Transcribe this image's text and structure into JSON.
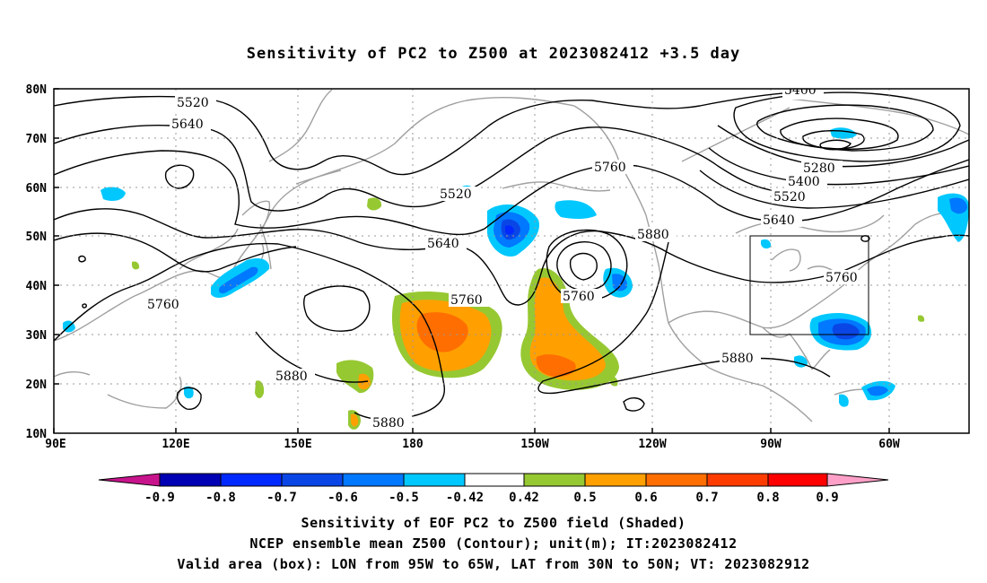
{
  "title": "Sensitivity of PC2 to Z500 at 2023082412 +3.5 day",
  "map": {
    "lat_labels": [
      "80N",
      "70N",
      "60N",
      "50N",
      "40N",
      "30N",
      "20N",
      "10N"
    ],
    "lon_labels": [
      "90E",
      "120E",
      "150E",
      "180",
      "150W",
      "120W",
      "90W",
      "60W"
    ],
    "lon_range": [
      "90E",
      "35W"
    ],
    "lat_range": [
      "10N",
      "80N"
    ],
    "grid": "dotted",
    "valid_box": {
      "lon_from": "95W",
      "lon_to": "65W",
      "lat_from": "30N",
      "lat_to": "50N"
    }
  },
  "contours": {
    "unit": "m",
    "labels": [
      "5520",
      "5640",
      "5760",
      "5880",
      "5520",
      "5640",
      "5760",
      "5880",
      "5760",
      "5880",
      "5880",
      "5400",
      "5280",
      "5400",
      "5520",
      "5640",
      "5760",
      "5880"
    ]
  },
  "colorbar": {
    "tick_labels": [
      "-0.9",
      "-0.8",
      "-0.7",
      "-0.6",
      "-0.5",
      "-0.42",
      "0.42",
      "0.5",
      "0.6",
      "0.7",
      "0.8",
      "0.9"
    ],
    "colors": {
      "below": "#c8148c",
      "bins": [
        "#0000b4",
        "#0028ff",
        "#0a46e6",
        "#0078ff",
        "#00c8ff",
        "#ffffff",
        "#96c832",
        "#ffa000",
        "#ff6e00",
        "#ff3c00",
        "#ff0000"
      ],
      "above": "#ffa0c8"
    }
  },
  "captions": [
    "Sensitivity of EOF PC2 to Z500 field (Shaded)",
    "NCEP ensemble mean Z500 (Contour); unit(m); IT:2023082412",
    "Valid area (box): LON from 95W to 65W, LAT from 30N to 50N; VT: 2023082912"
  ]
}
